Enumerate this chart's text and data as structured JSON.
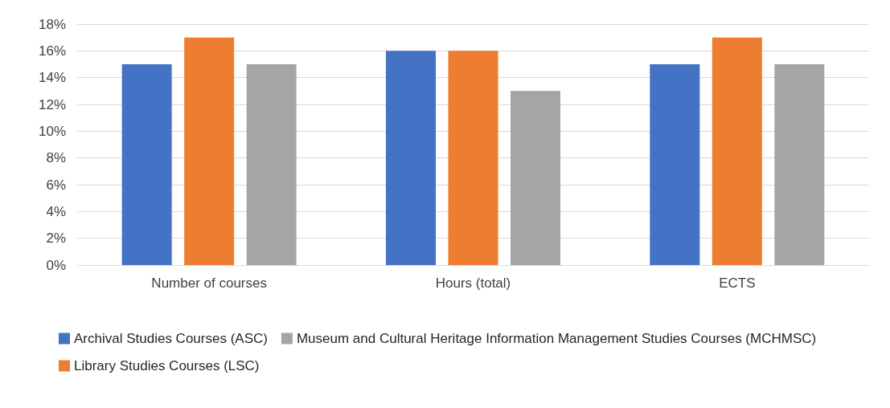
{
  "chart_data": {
    "type": "bar",
    "categories": [
      "Number of courses",
      "Hours (total)",
      "ECTS"
    ],
    "series": [
      {
        "name": "Archival Studies Courses (ASC)",
        "color": "#4472c4",
        "values": [
          15,
          16,
          15
        ]
      },
      {
        "name": "Library Studies Courses (LSC)",
        "color": "#ed7d31",
        "values": [
          17,
          16,
          17
        ]
      },
      {
        "name": "Museum and Cultural Heritage Information Management Studies Courses (MCHMSC)",
        "color": "#a5a5a5",
        "values": [
          15,
          13,
          15
        ]
      }
    ],
    "ylim": [
      0,
      18
    ],
    "yticks": [
      {
        "value": 0,
        "label": "0%"
      },
      {
        "value": 2,
        "label": "2%"
      },
      {
        "value": 4,
        "label": "4%"
      },
      {
        "value": 6,
        "label": "6%"
      },
      {
        "value": 8,
        "label": "8%"
      },
      {
        "value": 10,
        "label": "10%"
      },
      {
        "value": 12,
        "label": "12%"
      },
      {
        "value": 14,
        "label": "14%"
      },
      {
        "value": 16,
        "label": "16%"
      },
      {
        "value": 18,
        "label": "18%"
      }
    ],
    "grid": "y",
    "legend": "bottom"
  }
}
